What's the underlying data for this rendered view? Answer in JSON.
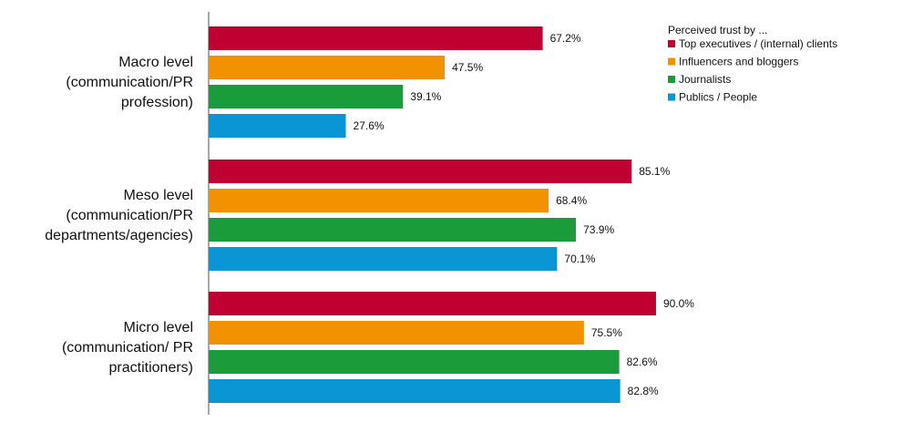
{
  "chart_data": {
    "type": "bar",
    "orientation": "horizontal",
    "categories": [
      [
        "Macro level",
        "(communication/PR",
        "profession)"
      ],
      [
        "Meso level",
        "(communication/PR",
        "departments/agencies)"
      ],
      [
        "Micro level",
        "(communication/ PR",
        "practitioners)"
      ]
    ],
    "series": [
      {
        "name": "Top executives / (internal) clients",
        "values": [
          67.2,
          85.1,
          90.0
        ],
        "labels": [
          "67.2%",
          "85.1%",
          "90.0%"
        ],
        "color": "#c00030"
      },
      {
        "name": "Influencers and bloggers",
        "values": [
          47.5,
          68.4,
          75.5
        ],
        "labels": [
          "47.5%",
          "68.4%",
          "75.5%"
        ],
        "color": "#f39200"
      },
      {
        "name": "Journalists",
        "values": [
          39.1,
          73.9,
          82.6
        ],
        "labels": [
          "39.1%",
          "73.9%",
          "82.6%"
        ],
        "color": "#1a9c3b"
      },
      {
        "name": "Publics / People",
        "values": [
          27.6,
          70.1,
          82.8
        ],
        "labels": [
          "27.6%",
          "70.1%",
          "82.8%"
        ],
        "color": "#0a96d4"
      }
    ],
    "legend_title": "Perceived trust by ...",
    "legend_position": "top-right",
    "xlim": [
      0,
      100
    ],
    "grid": false,
    "title": "",
    "xlabel": "",
    "ylabel": ""
  }
}
